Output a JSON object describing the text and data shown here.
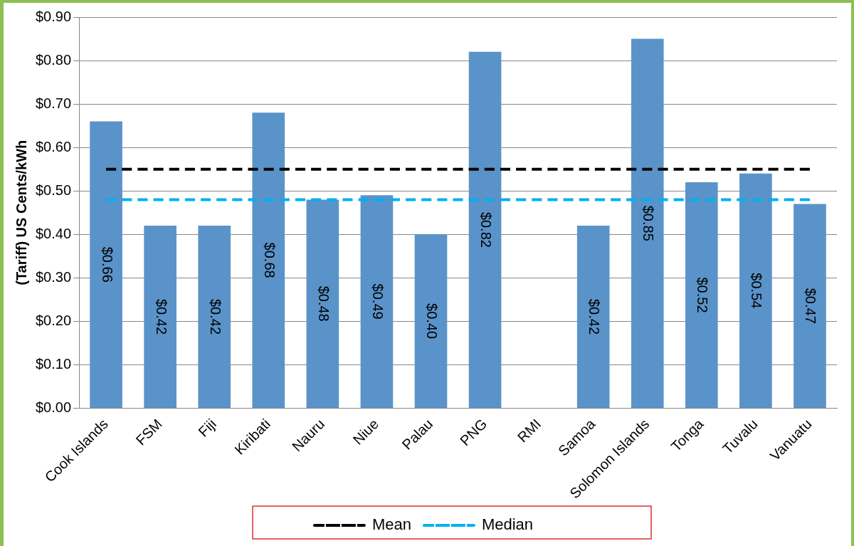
{
  "chart_data": {
    "type": "bar",
    "ylabel": "(Tariff) US Cents/kWh",
    "categories": [
      "Cook Islands",
      "FSM",
      "Fiji",
      "Kiribati",
      "Nauru",
      "Niue",
      "Palau",
      "PNG",
      "RMI",
      "Samoa",
      "Solomon Islands",
      "Tonga",
      "Tuvalu",
      "Vanuatu"
    ],
    "series": [
      {
        "color": "#5a93c9",
        "values": [
          0.66,
          0.42,
          0.42,
          0.68,
          0.48,
          0.49,
          0.4,
          0.82,
          null,
          0.42,
          0.85,
          0.52,
          0.54,
          0.47
        ],
        "value_labels": [
          "$0.66",
          "$0.42",
          "$0.42",
          "$0.68",
          "$0.48",
          "$0.49",
          "$0.40",
          "$0.82",
          null,
          "$0.42",
          "$0.85",
          "$0.52",
          "$0.54",
          "$0.47"
        ]
      },
      {
        "type": "line",
        "name": "Mean",
        "color": "#000000",
        "line_style": "dashed",
        "marker": "none",
        "values": [
          0.55,
          0.55,
          0.55,
          0.55,
          0.55,
          0.55,
          0.55,
          0.55,
          0.55,
          0.55,
          0.55,
          0.55,
          0.55,
          0.55
        ]
      },
      {
        "type": "line",
        "name": "Median",
        "color": "#00b0f0",
        "line_style": "dashed",
        "marker": "none",
        "values": [
          0.48,
          0.48,
          0.48,
          0.48,
          0.48,
          0.48,
          0.48,
          0.48,
          0.48,
          0.48,
          0.48,
          0.48,
          0.48,
          0.48
        ]
      }
    ],
    "ylim": [
      0,
      0.9
    ],
    "yticks": [
      {
        "value": 0,
        "label": "$0.00"
      },
      {
        "value": 0.1,
        "label": "$0.10"
      },
      {
        "value": 0.2,
        "label": "$0.20"
      },
      {
        "value": 0.3,
        "label": "$0.30"
      },
      {
        "value": 0.4,
        "label": "$0.40"
      },
      {
        "value": 0.5,
        "label": "$0.50"
      },
      {
        "value": 0.6,
        "label": "$0.60"
      },
      {
        "value": 0.7,
        "label": "$0.70"
      },
      {
        "value": 0.8,
        "label": "$0.80"
      },
      {
        "value": 0.9,
        "label": "$0.90"
      }
    ],
    "grid": "y",
    "legend": "bottom"
  }
}
